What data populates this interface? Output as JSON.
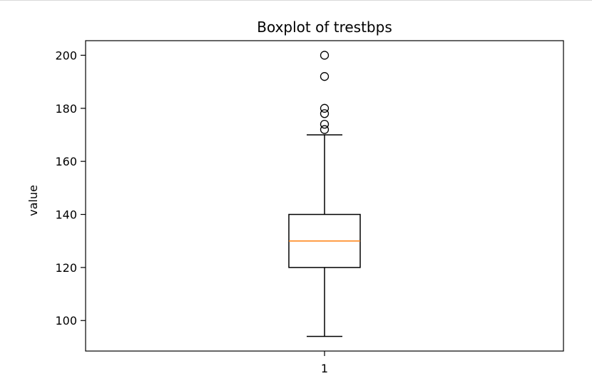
{
  "chart_data": {
    "type": "boxplot",
    "title": "Boxplot of trestbps",
    "xlabel": "",
    "ylabel": "value",
    "categories": [
      "1"
    ],
    "ylim": [
      88.5,
      205.5
    ],
    "yticks": [
      100,
      120,
      140,
      160,
      180,
      200
    ],
    "box": {
      "whisker_low": 94,
      "q1": 120,
      "median": 130,
      "q3": 140,
      "whisker_high": 170
    },
    "outliers": [
      172,
      174,
      178,
      180,
      192,
      200
    ],
    "grid": false,
    "colors": {
      "median": "#ff7f0e",
      "box": "#000000",
      "axes": "#000000"
    }
  }
}
